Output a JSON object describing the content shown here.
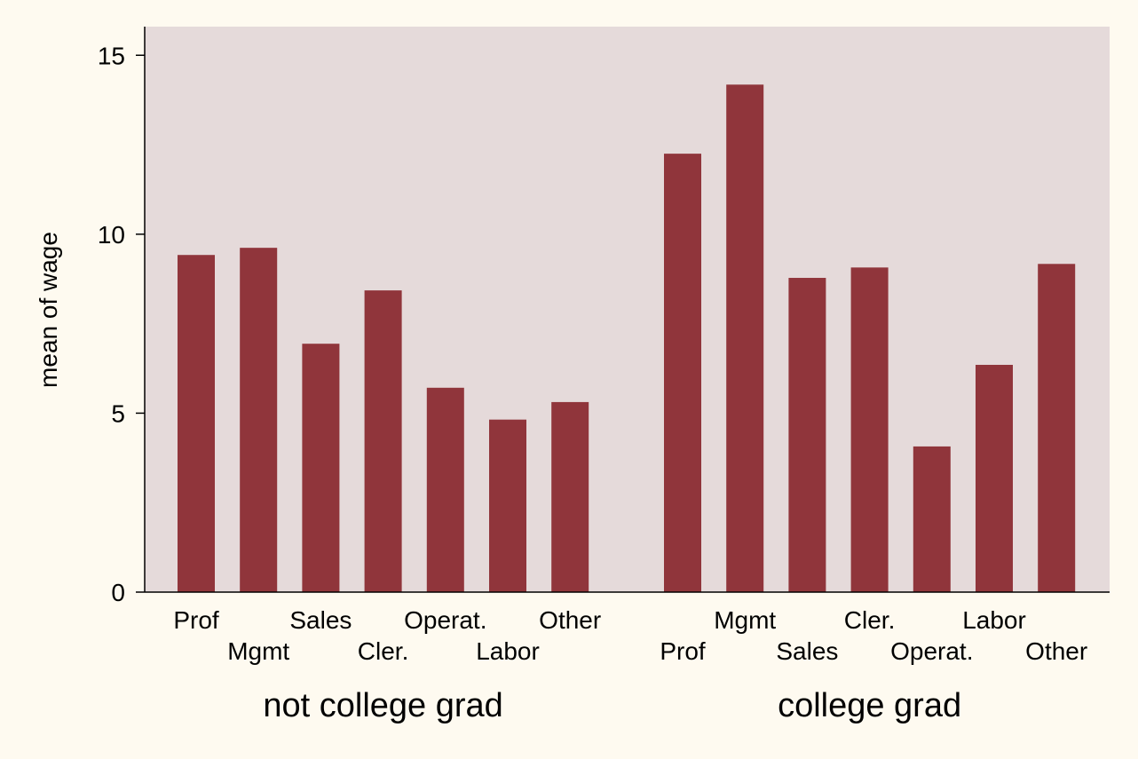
{
  "chart_data": {
    "type": "bar",
    "title": "",
    "ylabel": "mean of wage",
    "xlabel": "",
    "ylim": [
      0,
      15.8
    ],
    "yticks": [
      0,
      5,
      10,
      15
    ],
    "grid": false,
    "legend": "none",
    "colors": {
      "bar": "#90353B",
      "plot_background": "#E5DADA",
      "page_background": "#FEFAF0",
      "axis": "#000000"
    },
    "groups": [
      {
        "name": "not college grad",
        "categories": [
          "Prof",
          "Mgmt",
          "Sales",
          "Cler.",
          "Operat.",
          "Labor",
          "Other"
        ],
        "values": [
          9.42,
          9.62,
          6.94,
          8.43,
          5.71,
          4.82,
          5.31
        ]
      },
      {
        "name": "college grad",
        "categories": [
          "Prof",
          "Mgmt",
          "Sales",
          "Cler.",
          "Operat.",
          "Labor",
          "Other"
        ],
        "values": [
          12.25,
          14.18,
          8.78,
          9.07,
          4.07,
          6.35,
          9.17
        ]
      }
    ]
  }
}
